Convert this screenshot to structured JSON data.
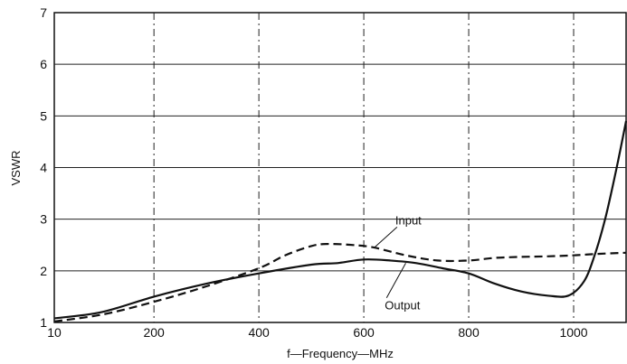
{
  "chart_data": {
    "type": "line",
    "title": "",
    "xlabel": "f—Frequency—MHz",
    "ylabel": "VSWR",
    "xlim": [
      10,
      1100
    ],
    "ylim": [
      1,
      7
    ],
    "x_ticks": [
      10,
      200,
      400,
      600,
      800,
      1000
    ],
    "x_tick_labels": [
      "10",
      "200",
      "400",
      "600",
      "800",
      "1000"
    ],
    "y_ticks": [
      1,
      2,
      3,
      4,
      5,
      6,
      7
    ],
    "y_tick_labels": [
      "1",
      "2",
      "3",
      "4",
      "5",
      "6",
      "7"
    ],
    "grid": true,
    "series": [
      {
        "name": "Input",
        "style": "dashed",
        "color": "#111111",
        "points": [
          [
            10,
            1.02
          ],
          [
            100,
            1.15
          ],
          [
            200,
            1.4
          ],
          [
            300,
            1.7
          ],
          [
            400,
            2.05
          ],
          [
            450,
            2.3
          ],
          [
            500,
            2.48
          ],
          [
            530,
            2.52
          ],
          [
            580,
            2.5
          ],
          [
            620,
            2.45
          ],
          [
            680,
            2.3
          ],
          [
            740,
            2.2
          ],
          [
            800,
            2.2
          ],
          [
            850,
            2.25
          ],
          [
            900,
            2.27
          ],
          [
            950,
            2.28
          ],
          [
            1000,
            2.3
          ],
          [
            1050,
            2.33
          ],
          [
            1100,
            2.35
          ]
        ]
      },
      {
        "name": "Output",
        "style": "solid",
        "color": "#111111",
        "points": [
          [
            10,
            1.08
          ],
          [
            100,
            1.2
          ],
          [
            200,
            1.5
          ],
          [
            300,
            1.75
          ],
          [
            400,
            1.95
          ],
          [
            500,
            2.12
          ],
          [
            550,
            2.15
          ],
          [
            600,
            2.22
          ],
          [
            650,
            2.2
          ],
          [
            700,
            2.15
          ],
          [
            750,
            2.05
          ],
          [
            800,
            1.95
          ],
          [
            850,
            1.75
          ],
          [
            900,
            1.6
          ],
          [
            950,
            1.52
          ],
          [
            990,
            1.52
          ],
          [
            1020,
            1.8
          ],
          [
            1040,
            2.3
          ],
          [
            1060,
            3.0
          ],
          [
            1080,
            3.9
          ],
          [
            1100,
            4.9
          ]
        ]
      }
    ],
    "annotations": [
      {
        "text": "Input",
        "x": 660,
        "y": 2.9,
        "arrow_to": [
          620,
          2.45
        ]
      },
      {
        "text": "Output",
        "x": 640,
        "y": 1.25,
        "arrow_to": [
          680,
          2.15
        ]
      }
    ]
  }
}
